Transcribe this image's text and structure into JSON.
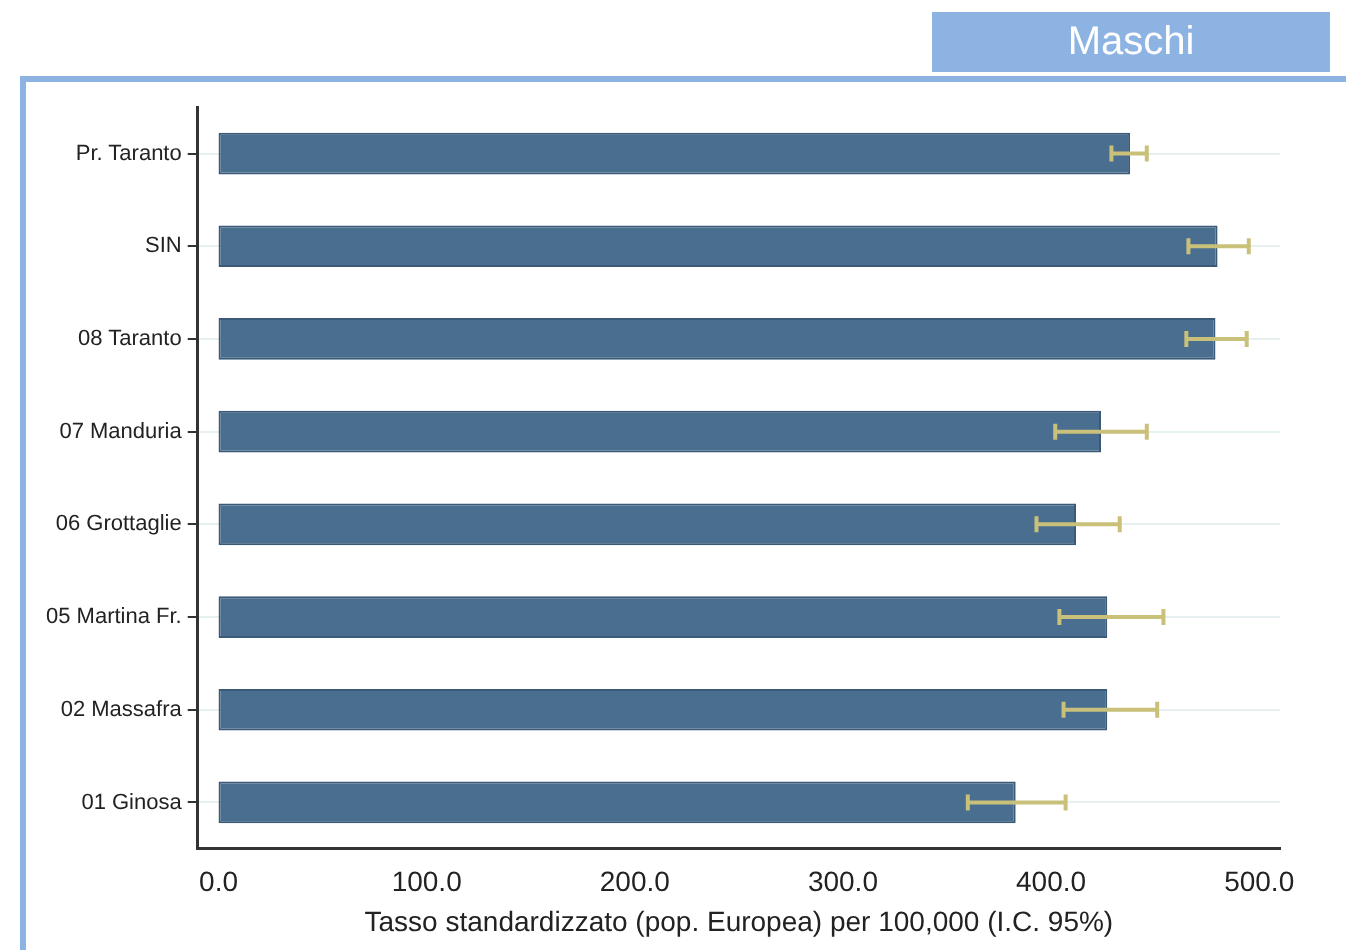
{
  "chart_data": {
    "type": "bar",
    "orientation": "horizontal",
    "title": "Maschi",
    "xlabel": "Tasso standardizzato (pop. Europea) per 100,000 (I.C. 95%)",
    "categories": [
      "Pr. Taranto",
      "SIN",
      "08 Taranto",
      "07 Manduria",
      "06 Grottaglie",
      "05 Martina Fr.",
      "02 Massafra",
      "01 Ginosa"
    ],
    "series": [
      {
        "color": "#4a6e8f",
        "values": [
          438,
          480,
          479,
          424,
          412,
          427,
          427,
          383
        ],
        "errors": [
          [
            429,
            446
          ],
          [
            466,
            495
          ],
          [
            465,
            494
          ],
          [
            402,
            446
          ],
          [
            393,
            433
          ],
          [
            404,
            454
          ],
          [
            406,
            451
          ],
          [
            360,
            407
          ]
        ]
      }
    ],
    "xlim": [
      -10,
      510
    ],
    "xticks": [
      {
        "value": 0,
        "label": "0.0"
      },
      {
        "value": 100,
        "label": "100.0"
      },
      {
        "value": 200,
        "label": "200.0"
      },
      {
        "value": 300,
        "label": "300.0"
      },
      {
        "value": 400,
        "label": "400.0"
      },
      {
        "value": 500,
        "label": "500.0"
      }
    ],
    "grid": "y",
    "legend": false
  }
}
